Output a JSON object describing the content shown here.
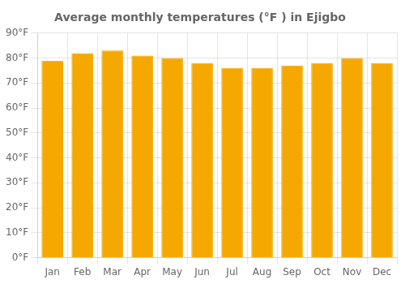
{
  "chart_data": {
    "type": "bar",
    "title": "Average monthly temperatures (°F ) in Ejigbo",
    "categories": [
      "Jan",
      "Feb",
      "Mar",
      "Apr",
      "May",
      "Jun",
      "Jul",
      "Aug",
      "Sep",
      "Oct",
      "Nov",
      "Dec"
    ],
    "values": [
      79,
      82,
      83,
      81,
      80,
      78,
      76,
      76,
      77,
      78,
      80,
      78
    ],
    "color": "#F5A800",
    "ylim": [
      0,
      90
    ],
    "yticks": [
      {
        "value": 0,
        "label": "0°F"
      },
      {
        "value": 10,
        "label": "10°F"
      },
      {
        "value": 20,
        "label": "20°F"
      },
      {
        "value": 30,
        "label": "30°F"
      },
      {
        "value": 40,
        "label": "40°F"
      },
      {
        "value": 50,
        "label": "50°F"
      },
      {
        "value": 60,
        "label": "60°F"
      },
      {
        "value": 70,
        "label": "70°F"
      },
      {
        "value": 80,
        "label": "80°F"
      },
      {
        "value": 90,
        "label": "90°F"
      }
    ],
    "grid": true
  }
}
